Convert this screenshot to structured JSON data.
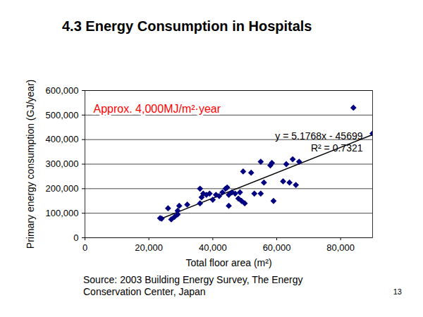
{
  "chart_data": {
    "type": "scatter",
    "title": "4.3 Energy Consumption in Hospitals",
    "x_label": "Total floor area (m²)",
    "y_label": "Primary energy consumption (GJ/year)",
    "x": [
      23500,
      24000,
      26000,
      27000,
      28000,
      29000,
      29000,
      29500,
      32000,
      36000,
      36000,
      36500,
      37000,
      38000,
      39000,
      40000,
      41000,
      42000,
      43000,
      44000,
      44500,
      45000,
      45000,
      46000,
      47000,
      48000,
      48500,
      49000,
      49500,
      50000,
      52000,
      53000,
      55000,
      55000,
      56000,
      58000,
      58500,
      59000,
      62000,
      63000,
      64000,
      65000,
      66000,
      67000,
      84000,
      90000
    ],
    "values": [
      80000,
      78000,
      120000,
      75000,
      85000,
      95000,
      110000,
      130000,
      135000,
      140000,
      200000,
      165000,
      180000,
      175000,
      180000,
      155000,
      175000,
      170000,
      185000,
      200000,
      205000,
      130000,
      175000,
      185000,
      180000,
      160000,
      185000,
      150000,
      270000,
      140000,
      265000,
      180000,
      310000,
      180000,
      225000,
      295000,
      305000,
      150000,
      230000,
      300000,
      225000,
      320000,
      215000,
      310000,
      530000,
      425000
    ],
    "color": "#000080",
    "marker": "diamond",
    "xlim": [
      0,
      90000
    ],
    "ylim": [
      0,
      600000
    ],
    "xticks": [
      0,
      {
        "value": 20000,
        "label": "20,000"
      },
      {
        "value": 40000,
        "label": "40,000"
      },
      {
        "value": 60000,
        "label": "60,000"
      },
      {
        "value": 80000,
        "label": "80,000"
      }
    ],
    "yticks": [
      0,
      {
        "value": 100000,
        "label": "100,000"
      },
      {
        "value": 200000,
        "label": "200,000"
      },
      {
        "value": 300000,
        "label": "300,000"
      },
      {
        "value": 400000,
        "label": "400,000"
      },
      {
        "value": 500000,
        "label": "500,000"
      },
      {
        "value": 600000,
        "label": "600,000"
      }
    ],
    "grid": true,
    "trendline": {
      "x": [
        23500,
        90000
      ],
      "values": [
        75956,
        420213
      ],
      "color": "#000000",
      "labels": [
        "y = 5.1768x - 45699",
        "R² = 0.7321"
      ]
    },
    "annotation": {
      "text": "Approx. 4,000MJ/m²·year",
      "color": "#ff0000"
    },
    "source": "Source:  2003 Building Energy Survey, The Energy Conservation Center, Japan",
    "page_number": "13"
  }
}
